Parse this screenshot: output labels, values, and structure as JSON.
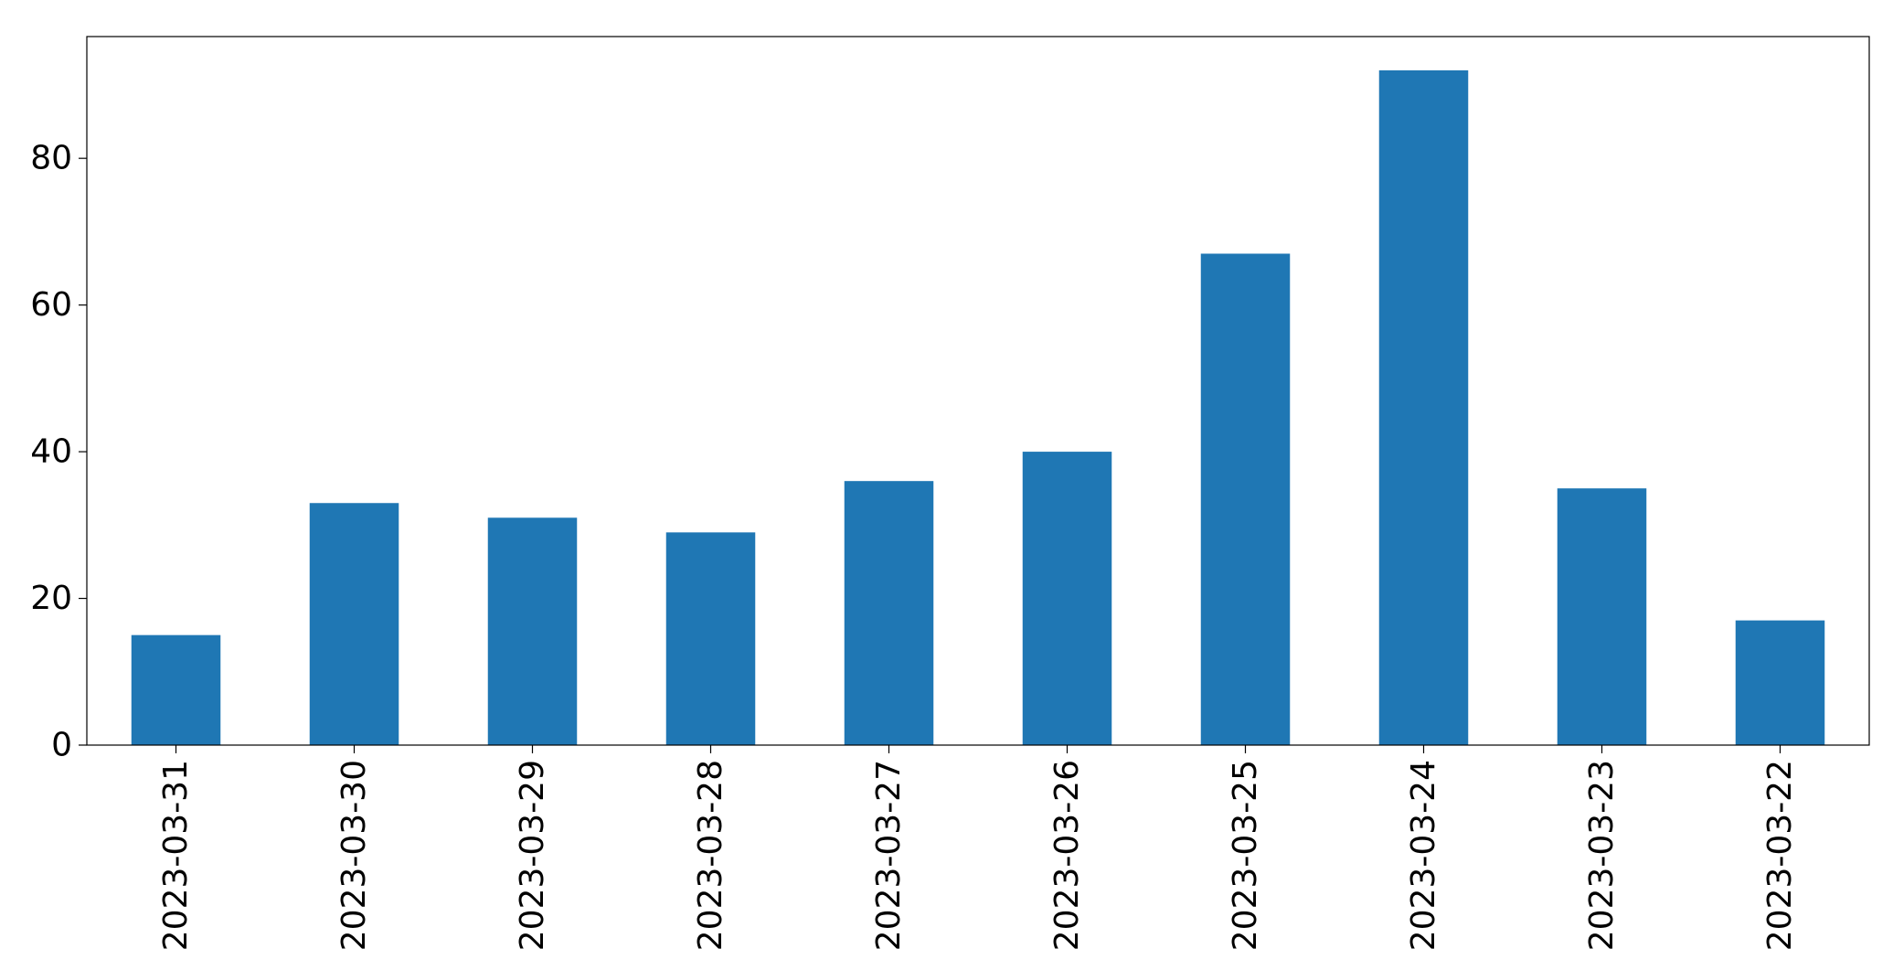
{
  "chart_data": {
    "type": "bar",
    "categories": [
      "2023-03-31",
      "2023-03-30",
      "2023-03-29",
      "2023-03-28",
      "2023-03-27",
      "2023-03-26",
      "2023-03-25",
      "2023-03-24",
      "2023-03-23",
      "2023-03-22"
    ],
    "series": [
      {
        "values": [
          15,
          33,
          31,
          29,
          36,
          40,
          67,
          92,
          35,
          17
        ],
        "color": "#1f77b4"
      }
    ],
    "ylim": [
      0,
      96.6
    ],
    "yticks": [
      0,
      20,
      40,
      60,
      80
    ],
    "xlabel": "",
    "ylabel": "",
    "title": "",
    "grid": false,
    "legend": "none"
  }
}
